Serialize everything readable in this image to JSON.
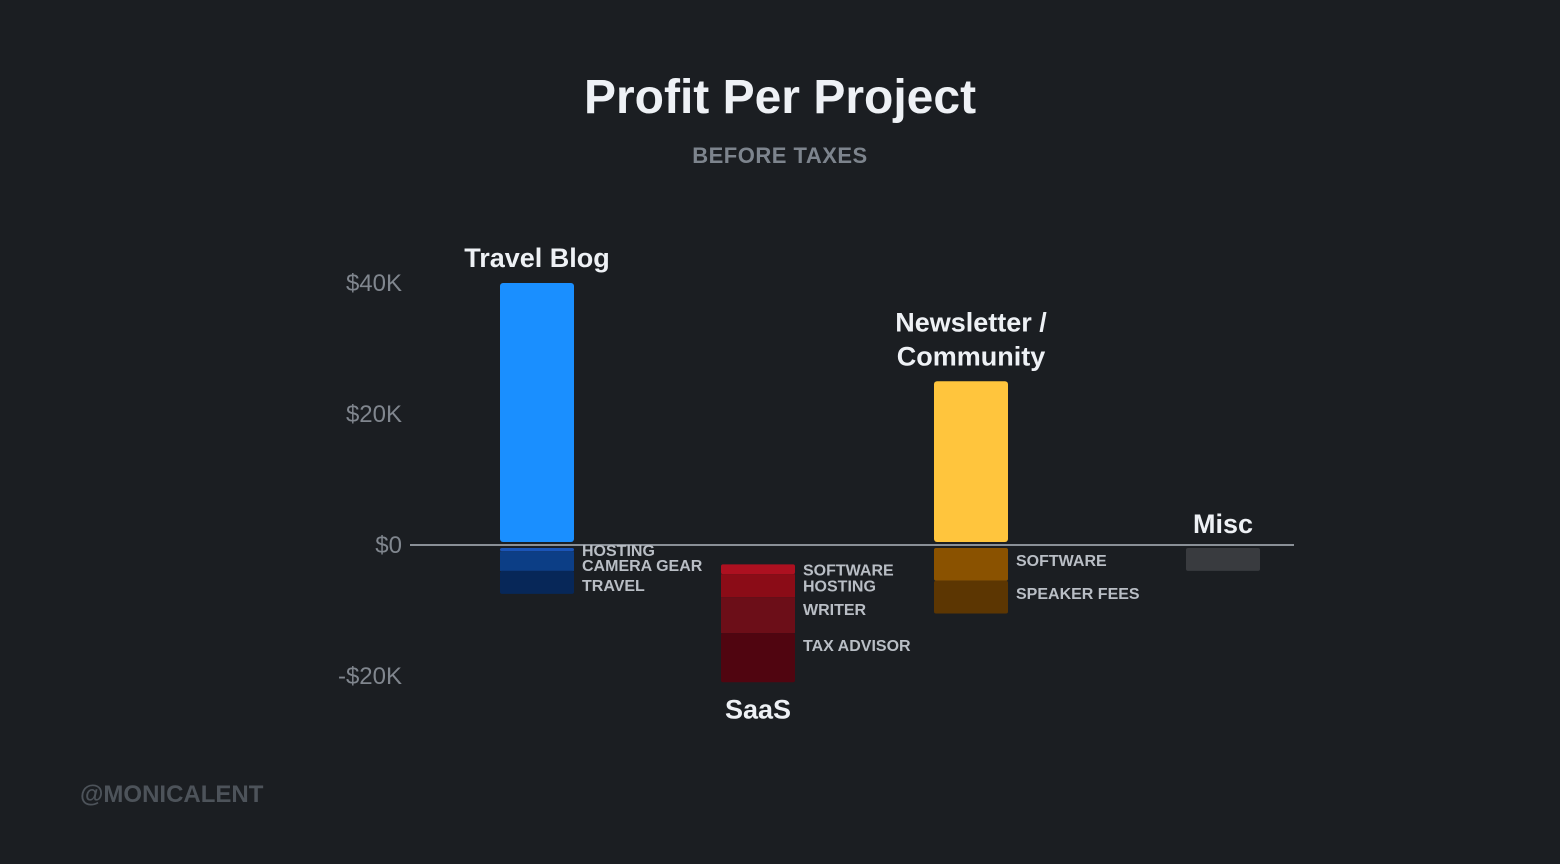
{
  "header": {
    "title": "Profit Per Project",
    "subtitle": "BEFORE TAXES"
  },
  "footer": {
    "credit": "@MONICALENT"
  },
  "colors": {
    "background": "#1b1e22",
    "axis": "#8a9097"
  },
  "chart_data": {
    "type": "bar",
    "title": "Profit Per Project",
    "subtitle": "BEFORE TAXES",
    "xlabel": "",
    "ylabel": "",
    "ylim": [
      -20000,
      40000
    ],
    "yticks": [
      {
        "value": 40000,
        "label": "$40K"
      },
      {
        "value": 20000,
        "label": "$20K"
      },
      {
        "value": 0,
        "label": "$0"
      },
      {
        "value": -20000,
        "label": "-$20K"
      }
    ],
    "grid": false,
    "legend": "none",
    "categories": [
      "Travel Blog",
      "SaaS",
      "Newsletter / Community",
      "Misc"
    ],
    "projects": [
      {
        "name": "Travel Blog",
        "label_lines": [
          "Travel Blog"
        ],
        "profit": 40000,
        "color": "#1a8fff",
        "costs": [
          {
            "label": "HOSTING",
            "value": -500,
            "color": "#1a55b8"
          },
          {
            "label": "CAMERA GEAR",
            "value": -3000,
            "color": "#0c3e86"
          },
          {
            "label": "TRAVEL",
            "value": -3500,
            "color": "#072758"
          }
        ]
      },
      {
        "name": "SaaS",
        "label_lines": [
          "SaaS"
        ],
        "profit": 0,
        "color": "#a30f1c",
        "costs": [
          {
            "label": "SOFTWARE",
            "value": -1500,
            "color": "#ad1020"
          },
          {
            "label": "HOSTING",
            "value": -3500,
            "color": "#8b0c17"
          },
          {
            "label": "WRITER",
            "value": -5500,
            "color": "#6c0e18"
          },
          {
            "label": "TAX ADVISOR",
            "value": -7500,
            "color": "#500510"
          }
        ],
        "offset": -2500
      },
      {
        "name": "Newsletter / Community",
        "label_lines": [
          "Newsletter /",
          "Community"
        ],
        "profit": 25000,
        "color": "#ffc53d",
        "costs": [
          {
            "label": "SOFTWARE",
            "value": -5000,
            "color": "#8a5200"
          },
          {
            "label": "SPEAKER FEES",
            "value": -5000,
            "color": "#5c3602"
          }
        ]
      },
      {
        "name": "Misc",
        "label_lines": [
          "Misc"
        ],
        "profit": 0,
        "color": "#393b3f",
        "costs": [
          {
            "label": "",
            "value": -3500,
            "color": "#393b3f"
          }
        ]
      }
    ]
  }
}
